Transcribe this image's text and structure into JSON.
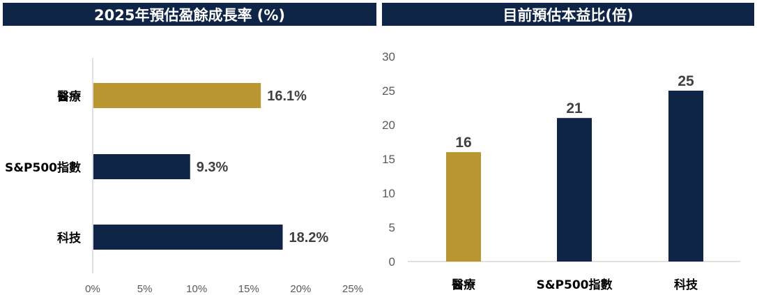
{
  "colors": {
    "header_bg": "#0f2548",
    "navy": "#0f2548",
    "gold": "#b9962f",
    "axis": "#bfbfbf",
    "tick_text": "#595959",
    "value_text": "#404040"
  },
  "chart_data": [
    {
      "type": "bar",
      "orientation": "horizontal",
      "title": "2025年預估盈餘成長率 (%)",
      "categories": [
        "醫療",
        "S&P500指數",
        "科技"
      ],
      "values": [
        16.1,
        9.3,
        18.2
      ],
      "value_labels": [
        "16.1%",
        "9.3%",
        "18.2%"
      ],
      "bar_colors": [
        "#b9962f",
        "#0f2548",
        "#0f2548"
      ],
      "xlim": [
        0,
        25
      ],
      "xticks": [
        0,
        5,
        10,
        15,
        20,
        25
      ],
      "xtick_labels": [
        "0%",
        "5%",
        "10%",
        "15%",
        "20%",
        "25%"
      ],
      "grid": false,
      "legend": "none"
    },
    {
      "type": "bar",
      "orientation": "vertical",
      "title": "目前預估本益比(倍)",
      "categories": [
        "醫療",
        "S&P500指數",
        "科技"
      ],
      "values": [
        16,
        21,
        25
      ],
      "value_labels": [
        "16",
        "21",
        "25"
      ],
      "bar_colors": [
        "#b9962f",
        "#0f2548",
        "#0f2548"
      ],
      "ylim": [
        0,
        30
      ],
      "yticks": [
        0,
        5,
        10,
        15,
        20,
        25,
        30
      ],
      "ytick_labels": [
        "0",
        "5",
        "10",
        "15",
        "20",
        "25",
        "30"
      ],
      "grid": false,
      "legend": "none"
    }
  ]
}
